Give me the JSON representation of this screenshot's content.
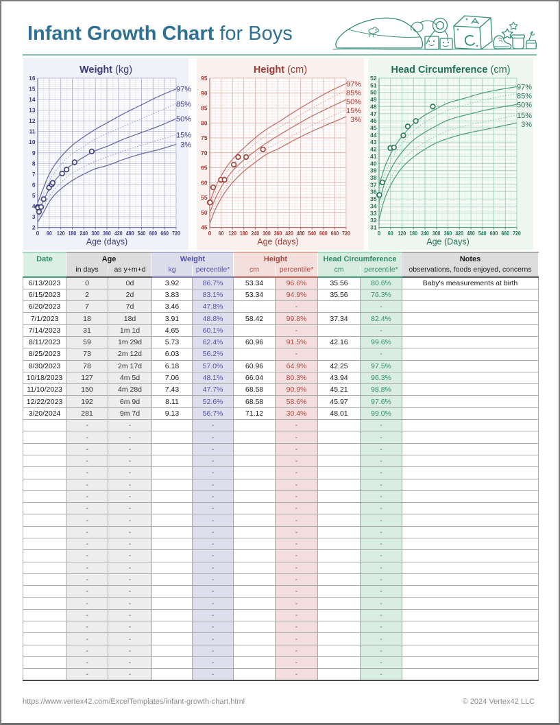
{
  "page": {
    "title_bold": "Infant Growth Chart",
    "title_rest": " for Boys",
    "footer_left": "https://www.vertex42.com/ExcelTemplates/infant-growth-chart.html",
    "footer_right": "© 2024 Vertex42 LLC",
    "title_color": "#2e7092",
    "rule_color": "#7cc2a3",
    "doodle_color": "#2f8c74"
  },
  "chart_data": [
    {
      "type": "scatter",
      "title": "Weight",
      "unit": "(kg)",
      "xlabel": "Age (days)",
      "xlim": [
        0,
        720
      ],
      "ylim": [
        2,
        16
      ],
      "x_major": 60,
      "x_minor": 30,
      "y_major": 1,
      "y_minor": 0.2,
      "percentile_labels": [
        "97%",
        "85%",
        "50%",
        "15%",
        "3%"
      ],
      "percentile_days": [
        0,
        30,
        60,
        90,
        120,
        180,
        240,
        300,
        360,
        450,
        540,
        630,
        720
      ],
      "percentiles": {
        "p97": [
          4.3,
          5.7,
          7.0,
          7.9,
          8.6,
          9.7,
          10.5,
          11.2,
          11.8,
          12.7,
          13.5,
          14.3,
          15.0
        ],
        "p85": [
          3.8,
          5.1,
          6.3,
          7.2,
          7.9,
          8.9,
          9.6,
          10.3,
          10.8,
          11.5,
          12.2,
          12.9,
          13.6
        ],
        "p50": [
          3.3,
          4.5,
          5.6,
          6.4,
          7.0,
          7.9,
          8.6,
          9.2,
          9.6,
          10.3,
          10.9,
          11.5,
          12.2
        ],
        "p15": [
          2.9,
          3.9,
          4.9,
          5.6,
          6.2,
          7.1,
          7.7,
          8.2,
          8.6,
          9.2,
          9.7,
          10.2,
          10.7
        ],
        "p3": [
          2.5,
          3.4,
          4.4,
          5.1,
          5.6,
          6.4,
          7.0,
          7.5,
          7.8,
          8.4,
          8.9,
          9.3,
          9.8
        ]
      },
      "points_x": [
        0,
        2,
        7,
        18,
        31,
        59,
        73,
        78,
        127,
        150,
        192,
        281
      ],
      "points_y": [
        3.92,
        3.83,
        3.46,
        3.91,
        4.65,
        5.73,
        6.03,
        6.18,
        7.06,
        7.43,
        8.11,
        9.13
      ],
      "colors": {
        "panel": "#f1f1f9",
        "plot_bg": "#ffffff",
        "dark": "#3c3c7e",
        "solid": "#6a6aa6",
        "dotted": "#9a9ac6",
        "major": "#b4b4d6",
        "minor": "#e2e2f0",
        "axis": "#7676aa",
        "ring": "#42427e"
      }
    },
    {
      "type": "scatter",
      "title": "Height",
      "unit": "(cm)",
      "xlabel": "Age (days)",
      "xlim": [
        0,
        720
      ],
      "ylim": [
        45,
        95
      ],
      "x_major": 60,
      "x_minor": 30,
      "y_major": 5,
      "y_minor": 1,
      "percentile_labels": [
        "97%",
        "85%",
        "50%",
        "15%",
        "3%"
      ],
      "percentile_days": [
        0,
        30,
        60,
        90,
        120,
        180,
        240,
        300,
        360,
        450,
        540,
        630,
        720
      ],
      "percentiles": {
        "p97": [
          53.4,
          58.4,
          62.2,
          65.3,
          67.8,
          71.6,
          75.0,
          77.9,
          80.2,
          83.9,
          87.3,
          90.5,
          93.2
        ],
        "p85": [
          51.8,
          56.7,
          60.5,
          63.5,
          66.1,
          69.8,
          73.1,
          75.9,
          78.2,
          81.7,
          85.0,
          88.1,
          90.9
        ],
        "p50": [
          49.9,
          54.7,
          58.4,
          61.4,
          63.9,
          67.6,
          70.6,
          73.3,
          75.7,
          79.1,
          82.3,
          85.1,
          87.8
        ],
        "p15": [
          47.9,
          52.7,
          56.4,
          59.3,
          61.7,
          65.4,
          68.5,
          71.3,
          73.3,
          76.2,
          79.2,
          81.9,
          84.4
        ],
        "p3": [
          46.3,
          51.1,
          54.7,
          57.6,
          60.0,
          63.8,
          66.8,
          69.5,
          71.3,
          74.4,
          77.2,
          79.7,
          82.1
        ]
      },
      "points_x": [
        0,
        2,
        18,
        59,
        78,
        127,
        150,
        192,
        281
      ],
      "points_y": [
        53.34,
        53.34,
        58.42,
        60.96,
        60.96,
        66.04,
        68.58,
        68.58,
        71.12
      ],
      "colors": {
        "panel": "#faf1ef",
        "plot_bg": "#fffefe",
        "dark": "#9e3a34",
        "solid": "#c4716b",
        "dotted": "#d9a09a",
        "major": "#e4b4ae",
        "minor": "#f5e2df",
        "axis": "#b4706a",
        "ring": "#9e453e"
      }
    },
    {
      "type": "scatter",
      "title": "Head Circumference",
      "unit": "(cm)",
      "xlabel": "Age (Days)",
      "xlim": [
        0,
        720
      ],
      "ylim": [
        31,
        52
      ],
      "x_major": 60,
      "x_minor": 30,
      "y_major": 1,
      "y_minor": 0.2,
      "percentile_labels": [
        "97%",
        "85%",
        "50%",
        "15%",
        "3%"
      ],
      "percentile_days": [
        0,
        30,
        60,
        90,
        120,
        180,
        240,
        300,
        360,
        450,
        540,
        630,
        720
      ],
      "percentiles": {
        "p97": [
          36.9,
          39.5,
          41.3,
          42.7,
          43.8,
          45.6,
          46.8,
          47.7,
          48.5,
          49.2,
          49.9,
          50.4,
          50.8
        ],
        "p85": [
          35.8,
          38.5,
          40.3,
          41.7,
          42.8,
          44.6,
          45.8,
          46.7,
          47.5,
          48.2,
          48.9,
          49.4,
          49.8
        ],
        "p50": [
          34.5,
          37.3,
          39.1,
          40.5,
          41.6,
          43.3,
          44.4,
          45.3,
          46.1,
          46.8,
          47.4,
          47.9,
          48.3
        ],
        "p15": [
          33.1,
          36.1,
          37.9,
          39.3,
          40.4,
          41.9,
          43.0,
          43.9,
          44.6,
          45.3,
          45.8,
          46.3,
          46.8
        ],
        "p3": [
          32.1,
          35.1,
          36.9,
          38.3,
          39.4,
          40.9,
          42.0,
          42.9,
          43.5,
          44.2,
          44.7,
          45.2,
          45.7
        ]
      },
      "points_x": [
        0,
        2,
        18,
        59,
        78,
        127,
        150,
        192,
        281
      ],
      "points_y": [
        35.56,
        35.56,
        37.34,
        42.16,
        42.25,
        43.94,
        45.21,
        45.97,
        48.01
      ],
      "colors": {
        "panel": "#eff7f1",
        "plot_bg": "#fdfffd",
        "dark": "#20715a",
        "solid": "#55a083",
        "dotted": "#8fc3ac",
        "major": "#9ed0b9",
        "minor": "#dcefe4",
        "axis": "#5da183",
        "ring": "#2e7a60"
      }
    }
  ],
  "table": {
    "groups": [
      {
        "label": "Date",
        "span": 1,
        "bg": "#dcefe4",
        "text": "#2f8a6b",
        "top": "#9fd9be",
        "bottom": "#3e9e7a"
      },
      {
        "label": "Age",
        "span": 2,
        "bg": "#dddddd",
        "text": "#1a1a1a",
        "top": "#ababab",
        "bottom": "#5a5a5a"
      },
      {
        "label": "Weight",
        "span": 2,
        "bg": "#dcdcea",
        "text": "#5151a3",
        "top": "#b2b2d8",
        "bottom": "#7c7cb4"
      },
      {
        "label": "Height",
        "span": 2,
        "bg": "#f3dfdb",
        "text": "#a94742",
        "top": "#eda795",
        "bottom": "#c0655c"
      },
      {
        "label": "Head Circumference",
        "span": 2,
        "bg": "#d8ecdf",
        "text": "#2f8a6b",
        "top": "#9fd9be",
        "bottom": "#3e9e7a"
      },
      {
        "label": "Notes",
        "span": 1,
        "bg": "#dddddd",
        "text": "#1a1a1a",
        "top": "#ababab",
        "bottom": "#5a5a5a"
      }
    ],
    "sub_headers": [
      "",
      "in days",
      "as y+m+d",
      "kg",
      "percentile*",
      "cm",
      "percentile*",
      "cm",
      "percentile*",
      "observations, foods enjoyed, concerns"
    ],
    "rows": [
      {
        "date": "6/13/2023",
        "days": "0",
        "ymd": "0d",
        "kg": "3.92",
        "wpct": "86.7%",
        "hcm": "53.34",
        "hpct": "96.6%",
        "dcm": "35.56",
        "dpct": "80.6%",
        "notes": "Baby's measurements at birth"
      },
      {
        "date": "6/15/2023",
        "days": "2",
        "ymd": "2d",
        "kg": "3.83",
        "wpct": "83.1%",
        "hcm": "53.34",
        "hpct": "94.9%",
        "dcm": "35.56",
        "dpct": "76.3%",
        "notes": ""
      },
      {
        "date": "6/20/2023",
        "days": "7",
        "ymd": "7d",
        "kg": "3.46",
        "wpct": "47.8%",
        "hcm": "",
        "hpct": "-",
        "dcm": "",
        "dpct": "-",
        "notes": ""
      },
      {
        "date": "7/1/2023",
        "days": "18",
        "ymd": "18d",
        "kg": "3.91",
        "wpct": "48.8%",
        "hcm": "58.42",
        "hpct": "99.8%",
        "dcm": "37.34",
        "dpct": "82.4%",
        "notes": ""
      },
      {
        "date": "7/14/2023",
        "days": "31",
        "ymd": "1m 1d",
        "kg": "4.65",
        "wpct": "60.1%",
        "hcm": "",
        "hpct": "-",
        "dcm": "",
        "dpct": "-",
        "notes": ""
      },
      {
        "date": "8/11/2023",
        "days": "59",
        "ymd": "1m 29d",
        "kg": "5.73",
        "wpct": "62.4%",
        "hcm": "60.96",
        "hpct": "91.5%",
        "dcm": "42.16",
        "dpct": "99.6%",
        "notes": ""
      },
      {
        "date": "8/25/2023",
        "days": "73",
        "ymd": "2m 12d",
        "kg": "6.03",
        "wpct": "56.2%",
        "hcm": "",
        "hpct": "-",
        "dcm": "",
        "dpct": "-",
        "notes": ""
      },
      {
        "date": "8/30/2023",
        "days": "78",
        "ymd": "2m 17d",
        "kg": "6.18",
        "wpct": "57.0%",
        "hcm": "60.96",
        "hpct": "64.9%",
        "dcm": "42.25",
        "dpct": "97.5%",
        "notes": ""
      },
      {
        "date": "10/18/2023",
        "days": "127",
        "ymd": "4m 5d",
        "kg": "7.06",
        "wpct": "48.1%",
        "hcm": "66.04",
        "hpct": "80.3%",
        "dcm": "43.94",
        "dpct": "96.3%",
        "notes": ""
      },
      {
        "date": "11/10/2023",
        "days": "150",
        "ymd": "4m 28d",
        "kg": "7.43",
        "wpct": "47.7%",
        "hcm": "68.58",
        "hpct": "90.9%",
        "dcm": "45.21",
        "dpct": "98.8%",
        "notes": ""
      },
      {
        "date": "12/22/2023",
        "days": "192",
        "ymd": "6m 9d",
        "kg": "8.11",
        "wpct": "52.6%",
        "hcm": "68.58",
        "hpct": "58.6%",
        "dcm": "45.97",
        "dpct": "97.6%",
        "notes": ""
      },
      {
        "date": "3/20/2024",
        "days": "281",
        "ymd": "9m 7d",
        "kg": "9.13",
        "wpct": "56.7%",
        "hcm": "71.12",
        "hpct": "30.4%",
        "dcm": "48.01",
        "dpct": "99.0%",
        "notes": ""
      }
    ],
    "empty_rows": 22,
    "empty_cell_text": "-",
    "cell_colors": {
      "gray_bg": "#ededed",
      "lavender_bg": "#dedeec",
      "pink_bg": "#f2dfdd",
      "mint_bg": "#d9ede3",
      "slate_text": "#5151a3",
      "red_text": "#ae4a44",
      "green_text": "#2f8a6b",
      "black_text": "#1a1a1a",
      "dash_gray": "#555555"
    }
  }
}
